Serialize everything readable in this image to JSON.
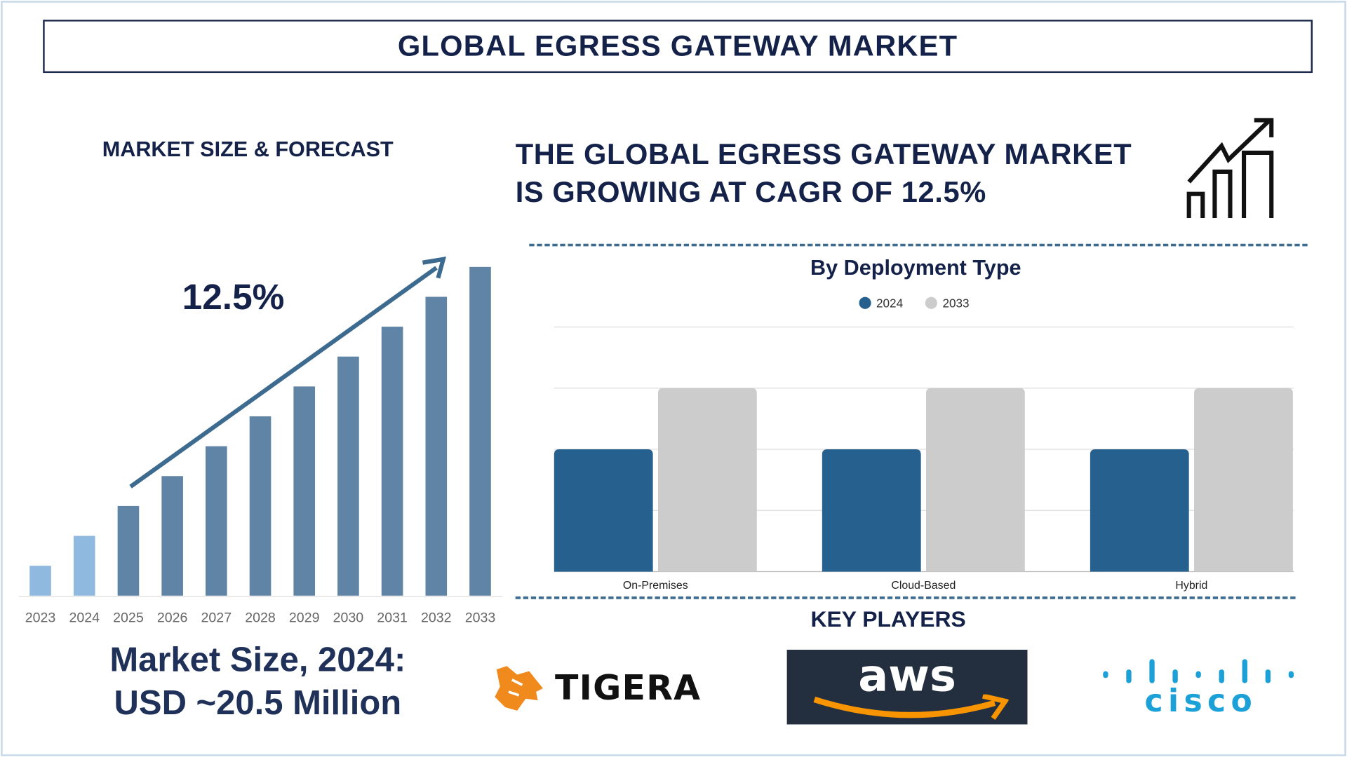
{
  "header": {
    "title": "GLOBAL EGRESS GATEWAY MARKET"
  },
  "left": {
    "section_title": "MARKET SIZE & FORECAST",
    "cagr_label": "12.5%",
    "market_size_line1": "Market Size, 2024:",
    "market_size_line2": "USD ~20.5 Million"
  },
  "headline": {
    "line1": "THE GLOBAL EGRESS GATEWAY MARKET",
    "line2": "IS GROWING AT CAGR OF 12.5%",
    "icon": "growth-chart-icon"
  },
  "key_players": {
    "title": "KEY PLAYERS",
    "logos": [
      "TIGERA",
      "aws",
      "cisco"
    ]
  },
  "colors": {
    "navy": "#14224a",
    "bar_forecast": "#5f84a6",
    "bar_history": "#8fb9df",
    "series_2024": "#26608e",
    "series_2033": "#cccccc",
    "tigera_orange": "#f08a1c",
    "cisco_cyan": "#1ba0d7",
    "aws_bg": "#232f3e",
    "aws_orange": "#f79400"
  },
  "chart_data": [
    {
      "type": "bar",
      "title": "",
      "categories": [
        "2023",
        "2024",
        "2025",
        "2026",
        "2027",
        "2028",
        "2029",
        "2030",
        "2031",
        "2032",
        "2033"
      ],
      "values": [
        1.0,
        2.0,
        3.0,
        4.0,
        5.0,
        6.0,
        7.0,
        8.0,
        9.0,
        10.0,
        11.0
      ],
      "value_scale": "relative (no axis values printed)",
      "highlight_history": [
        "2023",
        "2024"
      ],
      "grid": false,
      "annotation": "12.5%"
    },
    {
      "type": "bar",
      "title": "By Deployment Type",
      "categories": [
        "On-Premises",
        "Cloud-Based",
        "Hybrid"
      ],
      "series": [
        {
          "name": "2024",
          "values": [
            2,
            2,
            2
          ]
        },
        {
          "name": "2033",
          "values": [
            3,
            3,
            3
          ]
        }
      ],
      "ylim": [
        0,
        4
      ],
      "value_scale": "relative (no axis values printed)",
      "grid": true,
      "legend": "top-center"
    }
  ]
}
